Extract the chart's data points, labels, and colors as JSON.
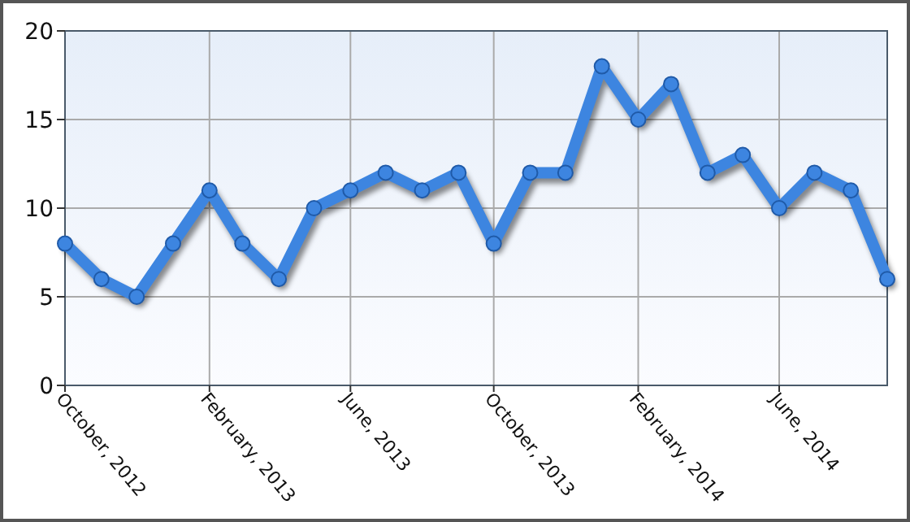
{
  "chart_data": {
    "type": "line",
    "x": [
      "2012-10",
      "2012-11",
      "2012-12",
      "2013-01",
      "2013-02",
      "2013-03",
      "2013-04",
      "2013-05",
      "2013-06",
      "2013-07",
      "2013-08",
      "2013-09",
      "2013-10",
      "2013-11",
      "2013-12",
      "2014-01",
      "2014-02",
      "2014-03",
      "2014-04",
      "2014-05",
      "2014-06",
      "2014-07",
      "2014-08",
      "2014-09"
    ],
    "series": [
      {
        "color": "#3d85e0",
        "values": [
          8,
          6,
          5,
          8,
          11,
          8,
          6,
          10,
          11,
          12,
          11,
          12,
          8,
          12,
          12,
          18,
          15,
          17,
          12,
          13,
          10,
          12,
          11,
          6
        ]
      }
    ],
    "xlim": [
      "2012-10",
      "2014-09"
    ],
    "xticks": [
      {
        "value": "2012-10",
        "label": "October, 2012"
      },
      {
        "value": "2013-02",
        "label": "February, 2013"
      },
      {
        "value": "2013-06",
        "label": "June, 2013"
      },
      {
        "value": "2013-10",
        "label": "October, 2013"
      },
      {
        "value": "2014-02",
        "label": "February, 2014"
      },
      {
        "value": "2014-06",
        "label": "June, 2014"
      }
    ],
    "ylim": [
      0,
      20
    ],
    "yticks": [
      0,
      5,
      10,
      15,
      20
    ],
    "grid": true,
    "marker": "circle",
    "line_style": "solid"
  }
}
